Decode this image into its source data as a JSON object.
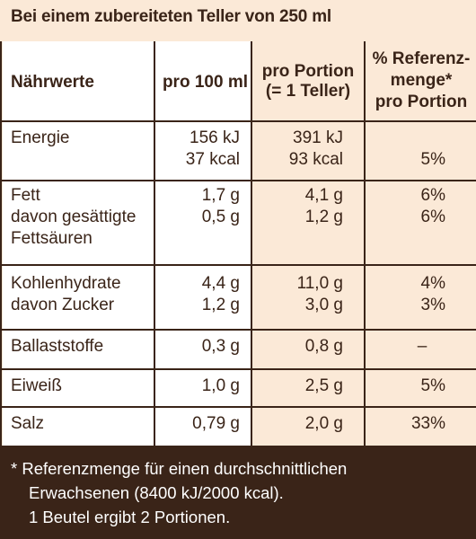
{
  "title": "Bei einem zubereiteten Teller von 250 ml",
  "headers": {
    "col1": "Nährwerte",
    "col2": "pro 100 ml",
    "col3_line1": "pro Portion",
    "col3_line2": "(= 1 Teller)",
    "col4_line1": "% Referenz-",
    "col4_line2": "menge*",
    "col4_line3": "pro Portion"
  },
  "rows": [
    {
      "label_lines": [
        "Energie"
      ],
      "per100": [
        "156 kJ",
        "37 kcal"
      ],
      "portion": [
        "391 kJ",
        "93 kcal"
      ],
      "ref": [
        "",
        "5%"
      ]
    },
    {
      "label_lines": [
        "Fett",
        "davon gesättigte",
        "Fettsäuren"
      ],
      "per100": [
        "1,7 g",
        "0,5 g"
      ],
      "portion": [
        "4,1 g",
        "1,2 g"
      ],
      "ref": [
        "6%",
        "6%"
      ]
    },
    {
      "label_lines": [
        "Kohlenhydrate",
        "davon Zucker"
      ],
      "per100": [
        "4,4 g",
        "1,2 g"
      ],
      "portion": [
        "11,0 g",
        "3,0 g"
      ],
      "ref": [
        "4%",
        "3%"
      ]
    },
    {
      "label_lines": [
        "Ballaststoffe"
      ],
      "per100": [
        "0,3 g"
      ],
      "portion": [
        "0,8 g"
      ],
      "ref": [
        "–"
      ]
    },
    {
      "label_lines": [
        "Eiweiß"
      ],
      "per100": [
        "1,0 g"
      ],
      "portion": [
        "2,5 g"
      ],
      "ref": [
        "5%"
      ]
    },
    {
      "label_lines": [
        "Salz"
      ],
      "per100": [
        "0,79 g"
      ],
      "portion": [
        "2,0 g"
      ],
      "ref": [
        "33%"
      ]
    }
  ],
  "footer": {
    "line1": "* Referenzmenge für einen durchschnittlichen",
    "line2": "Erwachsenen (8400 kJ/2000 kcal).",
    "line3": "1 Beutel ergibt 2 Portionen."
  }
}
